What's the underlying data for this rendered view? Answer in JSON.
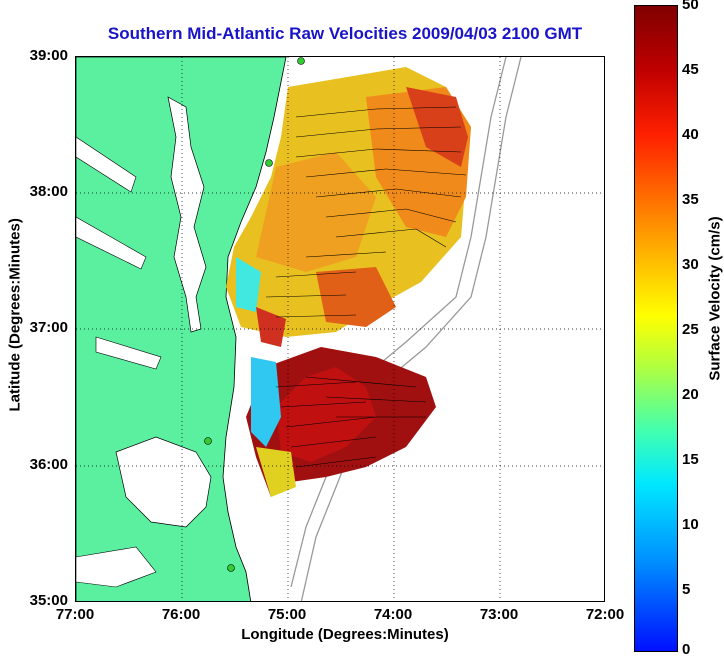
{
  "title": "Southern Mid-Atlantic Raw Velocities 2009/04/03 2100 GMT",
  "axes": {
    "xlabel": "Longitude (Degrees:Minutes)",
    "ylabel": "Latitude (Degrees:Minutes)",
    "x_ticks": [
      "77:00",
      "76:00",
      "75:00",
      "74:00",
      "73:00",
      "72:00"
    ],
    "y_ticks": [
      "39:00",
      "38:00",
      "37:00",
      "36:00",
      "35:00"
    ],
    "grid": true
  },
  "colorbar": {
    "label": "Surface Velocity (cm/s)",
    "ticks": [
      "50",
      "45",
      "40",
      "35",
      "30",
      "25",
      "20",
      "15",
      "10",
      "5",
      "0"
    ],
    "range": [
      0,
      50
    ],
    "colors": [
      "#0010ff",
      "#00e8ff",
      "#40ffb0",
      "#ffff00",
      "#ff7000",
      "#c00000",
      "#800000"
    ]
  },
  "colors": {
    "land": "#5af0a0",
    "title": "#1a14c8",
    "site": "#33cc33"
  },
  "map": {
    "lon_range": [
      -77,
      -72
    ],
    "lat_range": [
      35,
      39
    ],
    "sites": 4
  }
}
